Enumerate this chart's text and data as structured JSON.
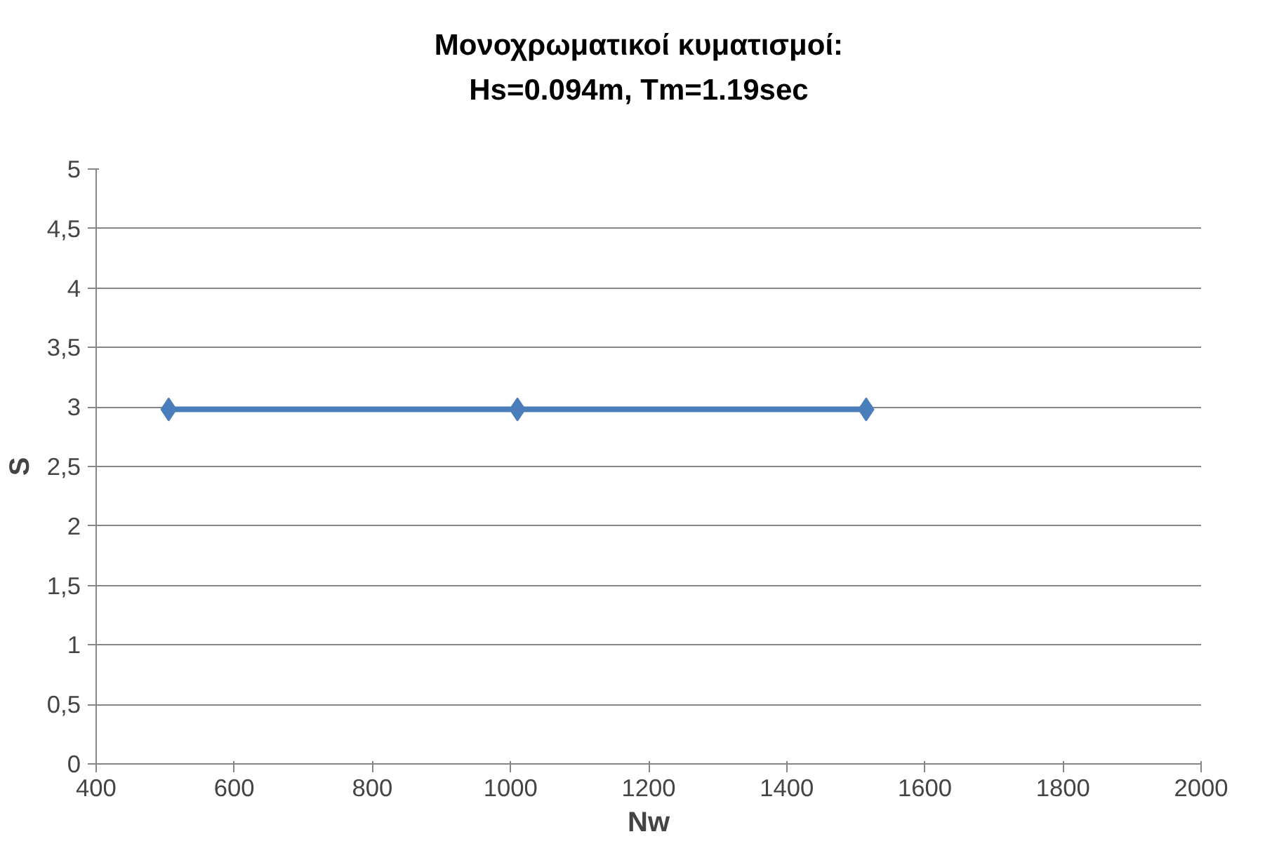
{
  "chart_data": {
    "type": "line",
    "title": "Μονοχρωματικοί κυματισμοί:\nHs=0.094m, Tm=1.19sec",
    "xlabel": "Nw",
    "ylabel": "S",
    "x": [
      505,
      1010,
      1515
    ],
    "series": [
      {
        "color": "#4a7ebb",
        "values": [
          2.98,
          2.98,
          2.98
        ]
      }
    ],
    "xlim": [
      400,
      2000
    ],
    "xticks": [
      400,
      600,
      800,
      1000,
      1200,
      1400,
      1600,
      1800,
      2000
    ],
    "ylim": [
      0,
      5
    ],
    "yticks": [
      0,
      {
        "value": 0.5,
        "label": "0,5"
      },
      1,
      {
        "value": 1.5,
        "label": "1,5"
      },
      2,
      {
        "value": 2.5,
        "label": "2,5"
      },
      3,
      {
        "value": 3.5,
        "label": "3,5"
      },
      4,
      {
        "value": 4.5,
        "label": "4,5"
      },
      5
    ],
    "grid": "y",
    "marker": "diamond",
    "line_style": "solid"
  }
}
